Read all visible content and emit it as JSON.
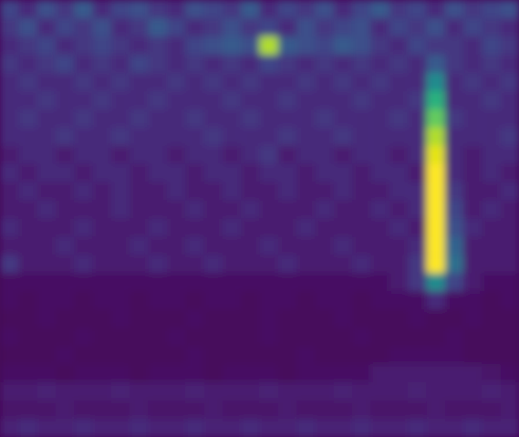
{
  "chart_data": {
    "type": "heatmap",
    "tick_labels": false,
    "color": "viridis",
    "zlim": [
      0,
      25
    ],
    "z": [
      [
        5,
        3,
        6,
        4,
        7,
        3,
        5,
        6,
        4,
        3,
        6,
        5,
        4,
        7,
        3,
        5,
        4,
        6,
        3,
        5,
        7,
        4,
        5,
        3,
        6,
        4,
        5,
        6
      ],
      [
        4,
        6,
        3,
        5,
        4,
        6,
        3,
        4,
        7,
        5,
        3,
        4,
        6,
        4,
        5,
        3,
        6,
        4,
        5,
        6,
        3,
        5,
        4,
        6,
        3,
        5,
        4,
        3
      ],
      [
        3,
        4,
        5,
        3,
        4,
        5,
        4,
        3,
        4,
        3,
        5,
        6,
        7,
        6,
        22,
        7,
        6,
        5,
        7,
        6,
        4,
        3,
        5,
        4,
        4,
        3,
        5,
        4
      ],
      [
        4,
        3,
        4,
        5,
        3,
        4,
        3,
        5,
        4,
        3,
        4,
        3,
        4,
        3,
        5,
        4,
        3,
        4,
        3,
        4,
        3,
        4,
        3,
        7,
        4,
        3,
        4,
        3
      ],
      [
        3,
        4,
        3,
        3,
        4,
        3,
        4,
        3,
        3,
        4,
        3,
        4,
        3,
        4,
        3,
        3,
        4,
        3,
        4,
        3,
        4,
        3,
        3,
        12,
        3,
        4,
        3,
        4
      ],
      [
        3,
        3,
        4,
        3,
        3,
        4,
        3,
        3,
        4,
        3,
        3,
        3,
        4,
        3,
        3,
        4,
        3,
        3,
        3,
        4,
        3,
        3,
        4,
        16,
        3,
        3,
        4,
        3
      ],
      [
        3,
        4,
        3,
        3,
        4,
        3,
        3,
        4,
        3,
        3,
        4,
        3,
        3,
        4,
        3,
        3,
        3,
        4,
        3,
        3,
        3,
        4,
        3,
        19,
        4,
        3,
        3,
        3
      ],
      [
        3,
        3,
        3,
        4,
        3,
        3,
        4,
        3,
        3,
        3,
        3,
        4,
        3,
        3,
        3,
        4,
        3,
        3,
        4,
        3,
        3,
        3,
        3,
        22,
        3,
        3,
        3,
        4
      ],
      [
        2,
        3,
        3,
        2,
        3,
        3,
        2,
        3,
        3,
        2,
        3,
        3,
        2,
        3,
        4,
        2,
        3,
        3,
        2,
        3,
        3,
        2,
        3,
        24,
        3,
        2,
        3,
        3
      ],
      [
        3,
        2,
        3,
        3,
        2,
        3,
        3,
        2,
        3,
        3,
        2,
        3,
        3,
        2,
        3,
        3,
        2,
        3,
        3,
        2,
        3,
        3,
        2,
        25,
        3,
        2,
        3,
        2
      ],
      [
        2,
        3,
        2,
        2,
        3,
        2,
        3,
        2,
        2,
        3,
        2,
        2,
        3,
        2,
        2,
        3,
        2,
        2,
        3,
        2,
        2,
        3,
        3,
        25,
        4,
        2,
        2,
        3
      ],
      [
        2,
        2,
        3,
        2,
        2,
        2,
        3,
        2,
        2,
        2,
        3,
        2,
        2,
        3,
        2,
        2,
        2,
        3,
        2,
        2,
        3,
        2,
        3,
        25,
        5,
        2,
        3,
        2
      ],
      [
        3,
        2,
        2,
        2,
        3,
        2,
        2,
        2,
        3,
        2,
        2,
        2,
        3,
        2,
        2,
        2,
        3,
        2,
        2,
        2,
        2,
        3,
        2,
        25,
        6,
        3,
        2,
        2
      ],
      [
        2,
        2,
        2,
        3,
        2,
        2,
        2,
        3,
        2,
        2,
        3,
        2,
        2,
        2,
        3,
        2,
        2,
        2,
        3,
        2,
        2,
        2,
        3,
        25,
        8,
        2,
        2,
        2
      ],
      [
        4,
        2,
        2,
        2,
        3,
        2,
        2,
        2,
        3,
        2,
        2,
        3,
        2,
        2,
        2,
        3,
        2,
        2,
        2,
        3,
        2,
        2,
        4,
        25,
        9,
        2,
        2,
        2
      ],
      [
        1,
        1,
        1,
        1,
        1,
        1,
        1,
        1,
        1,
        1,
        1,
        1,
        1,
        1,
        1,
        1,
        1,
        1,
        1,
        1,
        1,
        2,
        4,
        12,
        5,
        2,
        1,
        1
      ],
      [
        1,
        0.5,
        1,
        1,
        0.5,
        1,
        1,
        0.5,
        1,
        1,
        0.5,
        1,
        1,
        0.5,
        1,
        1,
        0.5,
        1,
        1,
        0.5,
        1,
        1,
        1,
        3,
        1,
        1,
        0.5,
        1
      ],
      [
        0.5,
        0.5,
        1,
        0.5,
        0.5,
        0.5,
        1,
        0.5,
        0.5,
        0.5,
        1,
        0.5,
        0.5,
        0.5,
        1,
        0.5,
        0.5,
        0.5,
        1,
        0.5,
        0.5,
        0.5,
        1,
        0.5,
        0.5,
        1,
        0.5,
        0.5
      ],
      [
        1,
        0.5,
        0.5,
        0.5,
        1,
        0.5,
        0.5,
        0.5,
        0.5,
        1,
        0.5,
        0.5,
        0.5,
        0.5,
        1,
        0.5,
        0.5,
        0.5,
        0.5,
        1,
        0.5,
        0.5,
        0.5,
        0.5,
        1,
        0.5,
        0.5,
        0.5
      ],
      [
        0.5,
        0.5,
        0.5,
        1,
        0.5,
        0.5,
        0.5,
        0.5,
        0.5,
        0.5,
        1,
        0.5,
        0.5,
        0.5,
        0.5,
        0.5,
        1,
        0.5,
        0.5,
        0.5,
        0.5,
        1,
        1,
        1,
        1,
        0.5,
        0.5,
        0.5
      ],
      [
        1,
        1,
        1,
        0.5,
        1,
        1,
        1,
        0.5,
        1,
        1,
        1,
        0.5,
        1,
        1,
        1,
        0.5,
        1,
        1,
        1,
        1,
        2,
        2,
        2,
        2,
        2,
        2,
        1.5,
        1
      ],
      [
        2,
        2,
        2.5,
        2,
        2,
        2,
        2.5,
        2,
        2,
        2,
        2.5,
        2,
        2,
        2,
        2.5,
        2,
        2,
        2,
        2.5,
        2,
        2,
        2,
        2.5,
        2,
        2,
        2,
        2.5,
        2
      ],
      [
        1.5,
        1.5,
        1.5,
        2,
        1.5,
        1.5,
        1.5,
        2,
        1.5,
        1.5,
        1.5,
        2,
        1.5,
        1.5,
        1.5,
        2,
        1.5,
        1.5,
        1.5,
        2,
        1.5,
        1.5,
        1.5,
        2,
        1.5,
        1.5,
        1.5,
        2
      ],
      [
        2.5,
        3,
        2.5,
        2.5,
        3,
        2.5,
        2.5,
        3,
        2.5,
        2.5,
        3,
        2.5,
        2.5,
        3,
        2.5,
        2.5,
        3,
        2.5,
        2.5,
        3,
        2.5,
        2.5,
        3,
        2.5,
        2.5,
        3,
        2.5,
        2.5
      ]
    ]
  }
}
